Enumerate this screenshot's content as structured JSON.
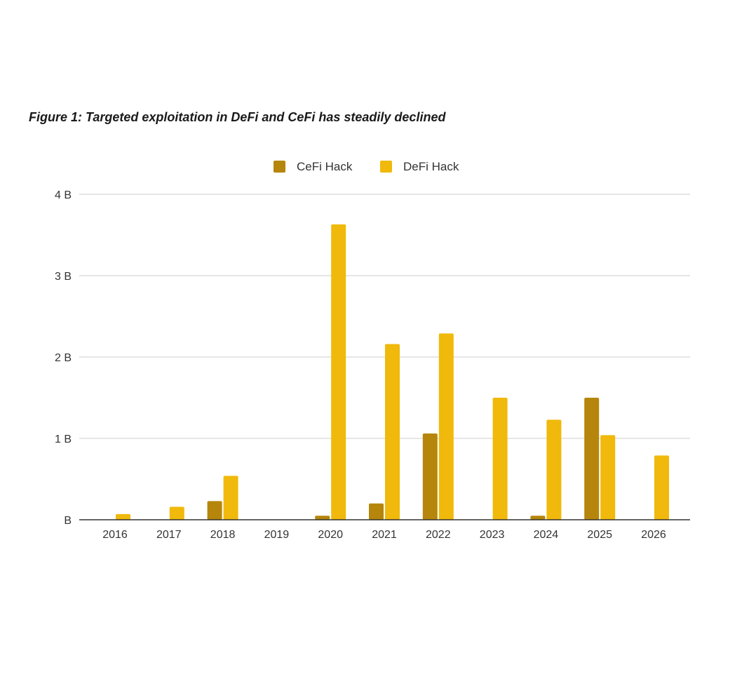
{
  "figure": {
    "title": "Figure 1: Targeted exploitation in DeFi and CeFi has steadily declined"
  },
  "chart_data": {
    "type": "bar",
    "title": "Figure 1: Targeted exploitation in DeFi and CeFi has steadily declined",
    "xlabel": "",
    "ylabel": "",
    "categories": [
      "2016",
      "2017",
      "2018",
      "2019",
      "2020",
      "2021",
      "2022",
      "2023",
      "2024",
      "2025",
      "2026"
    ],
    "series": [
      {
        "name": "CeFi Hack",
        "color": "#b5860b",
        "values": [
          0,
          0,
          0.23,
          0,
          0.05,
          0.2,
          1.06,
          0,
          0.05,
          1.5,
          0
        ]
      },
      {
        "name": "DeFi Hack",
        "color": "#f0b90b",
        "values": [
          0.07,
          0.16,
          0.54,
          0,
          3.63,
          2.16,
          2.29,
          1.5,
          1.23,
          1.04,
          0.79
        ]
      }
    ],
    "ylim": [
      0,
      4
    ],
    "yticks": [
      {
        "value": 0,
        "label": "B"
      },
      {
        "value": 1,
        "label": "1 B"
      },
      {
        "value": 2,
        "label": "2 B"
      },
      {
        "value": 3,
        "label": "3 B"
      },
      {
        "value": 4,
        "label": "4 B"
      }
    ],
    "units": "billions USD",
    "grid": true,
    "legend_position": "top-center",
    "axis_color": "#333333",
    "grid_color": "#cccccc"
  }
}
